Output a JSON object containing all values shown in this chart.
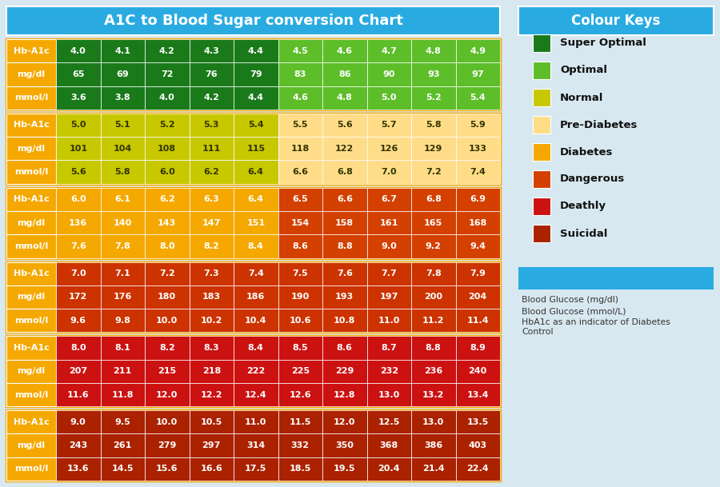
{
  "title": "A1C to Blood Sugar conversion Chart",
  "title_bg": "#29ABE2",
  "colour_keys_title": "Colour Keys",
  "colour_keys_title_bg": "#29ABE2",
  "legend_items": [
    {
      "label": "Super Optimal",
      "color": "#1A7A1A"
    },
    {
      "label": "Optimal",
      "color": "#5DBE2A"
    },
    {
      "label": "Normal",
      "color": "#C8C800"
    },
    {
      "label": "Pre-Diabetes",
      "color": "#FFDD88"
    },
    {
      "label": "Diabetes",
      "color": "#F5A800"
    },
    {
      "label": "Dangerous",
      "color": "#D44000"
    },
    {
      "label": "Deathly",
      "color": "#CC1111"
    },
    {
      "label": "Suicidal",
      "color": "#AA2200"
    }
  ],
  "note_box_color": "#29ABE2",
  "note_lines": [
    "Blood Glucose (mg/dl)",
    "Blood Glucose (mmol/L)",
    "HbA1c as an indicator of Diabetes\nControl"
  ],
  "groups": [
    {
      "rows": [
        {
          "label": "Hb-A1c",
          "values": [
            "4.0",
            "4.1",
            "4.2",
            "4.3",
            "4.4",
            "4.5",
            "4.6",
            "4.7",
            "4.8",
            "4.9"
          ]
        },
        {
          "label": "mg/dl",
          "values": [
            "65",
            "69",
            "72",
            "76",
            "79",
            "83",
            "86",
            "90",
            "93",
            "97"
          ]
        },
        {
          "label": "mmol/l",
          "values": [
            "3.6",
            "3.8",
            "4.0",
            "4.2",
            "4.4",
            "4.6",
            "4.8",
            "5.0",
            "5.2",
            "5.4"
          ]
        }
      ],
      "label_bg": "#F5A800",
      "label_text": "white",
      "cell_colors": [
        [
          "#1A7A1A",
          "#1A7A1A",
          "#1A7A1A",
          "#1A7A1A",
          "#1A7A1A",
          "#5DBE2A",
          "#5DBE2A",
          "#5DBE2A",
          "#5DBE2A",
          "#5DBE2A"
        ],
        [
          "#1A7A1A",
          "#1A7A1A",
          "#1A7A1A",
          "#1A7A1A",
          "#1A7A1A",
          "#5DBE2A",
          "#5DBE2A",
          "#5DBE2A",
          "#5DBE2A",
          "#5DBE2A"
        ],
        [
          "#1A7A1A",
          "#1A7A1A",
          "#1A7A1A",
          "#1A7A1A",
          "#1A7A1A",
          "#5DBE2A",
          "#5DBE2A",
          "#5DBE2A",
          "#5DBE2A",
          "#5DBE2A"
        ]
      ],
      "cell_text": "white",
      "border_color": "#F5A800"
    },
    {
      "rows": [
        {
          "label": "Hb-A1c",
          "values": [
            "5.0",
            "5.1",
            "5.2",
            "5.3",
            "5.4",
            "5.5",
            "5.6",
            "5.7",
            "5.8",
            "5.9"
          ]
        },
        {
          "label": "mg/dl",
          "values": [
            "101",
            "104",
            "108",
            "111",
            "115",
            "118",
            "122",
            "126",
            "129",
            "133"
          ]
        },
        {
          "label": "mmol/l",
          "values": [
            "5.6",
            "5.8",
            "6.0",
            "6.2",
            "6.4",
            "6.6",
            "6.8",
            "7.0",
            "7.2",
            "7.4"
          ]
        }
      ],
      "label_bg": "#F5A800",
      "label_text": "white",
      "cell_colors": [
        [
          "#C8C800",
          "#C8C800",
          "#C8C800",
          "#C8C800",
          "#C8C800",
          "#FFDD88",
          "#FFDD88",
          "#FFDD88",
          "#FFDD88",
          "#FFDD88"
        ],
        [
          "#C8C800",
          "#C8C800",
          "#C8C800",
          "#C8C800",
          "#C8C800",
          "#FFDD88",
          "#FFDD88",
          "#FFDD88",
          "#FFDD88",
          "#FFDD88"
        ],
        [
          "#C8C800",
          "#C8C800",
          "#C8C800",
          "#C8C800",
          "#C8C800",
          "#FFDD88",
          "#FFDD88",
          "#FFDD88",
          "#FFDD88",
          "#FFDD88"
        ]
      ],
      "cell_text": "#333300",
      "border_color": "#F5A800"
    },
    {
      "rows": [
        {
          "label": "Hb-A1c",
          "values": [
            "6.0",
            "6.1",
            "6.2",
            "6.3",
            "6.4",
            "6.5",
            "6.6",
            "6.7",
            "6.8",
            "6.9"
          ]
        },
        {
          "label": "mg/dl",
          "values": [
            "136",
            "140",
            "143",
            "147",
            "151",
            "154",
            "158",
            "161",
            "165",
            "168"
          ]
        },
        {
          "label": "mmol/l",
          "values": [
            "7.6",
            "7.8",
            "8.0",
            "8.2",
            "8.4",
            "8.6",
            "8.8",
            "9.0",
            "9.2",
            "9.4"
          ]
        }
      ],
      "label_bg": "#F5A800",
      "label_text": "white",
      "cell_colors": [
        [
          "#F5A800",
          "#F5A800",
          "#F5A800",
          "#F5A800",
          "#F5A800",
          "#D44000",
          "#D44000",
          "#D44000",
          "#D44000",
          "#D44000"
        ],
        [
          "#F5A800",
          "#F5A800",
          "#F5A800",
          "#F5A800",
          "#F5A800",
          "#D44000",
          "#D44000",
          "#D44000",
          "#D44000",
          "#D44000"
        ],
        [
          "#F5A800",
          "#F5A800",
          "#F5A800",
          "#F5A800",
          "#F5A800",
          "#D44000",
          "#D44000",
          "#D44000",
          "#D44000",
          "#D44000"
        ]
      ],
      "cell_text": "white",
      "border_color": "#F5A800"
    },
    {
      "rows": [
        {
          "label": "Hb-A1c",
          "values": [
            "7.0",
            "7.1",
            "7.2",
            "7.3",
            "7.4",
            "7.5",
            "7.6",
            "7.7",
            "7.8",
            "7.9"
          ]
        },
        {
          "label": "mg/dl",
          "values": [
            "172",
            "176",
            "180",
            "183",
            "186",
            "190",
            "193",
            "197",
            "200",
            "204"
          ]
        },
        {
          "label": "mmol/l",
          "values": [
            "9.6",
            "9.8",
            "10.0",
            "10.2",
            "10.4",
            "10.6",
            "10.8",
            "11.0",
            "11.2",
            "11.4"
          ]
        }
      ],
      "label_bg": "#F5A800",
      "label_text": "white",
      "cell_colors": [
        [
          "#CC3300",
          "#CC3300",
          "#CC3300",
          "#CC3300",
          "#CC3300",
          "#CC3300",
          "#CC3300",
          "#CC3300",
          "#CC3300",
          "#CC3300"
        ],
        [
          "#CC3300",
          "#CC3300",
          "#CC3300",
          "#CC3300",
          "#CC3300",
          "#CC3300",
          "#CC3300",
          "#CC3300",
          "#CC3300",
          "#CC3300"
        ],
        [
          "#CC3300",
          "#CC3300",
          "#CC3300",
          "#CC3300",
          "#CC3300",
          "#CC3300",
          "#CC3300",
          "#CC3300",
          "#CC3300",
          "#CC3300"
        ]
      ],
      "cell_text": "white",
      "border_color": "#F5A800"
    },
    {
      "rows": [
        {
          "label": "Hb-A1c",
          "values": [
            "8.0",
            "8.1",
            "8.2",
            "8.3",
            "8.4",
            "8.5",
            "8.6",
            "8.7",
            "8.8",
            "8.9"
          ]
        },
        {
          "label": "mg/dl",
          "values": [
            "207",
            "211",
            "215",
            "218",
            "222",
            "225",
            "229",
            "232",
            "236",
            "240"
          ]
        },
        {
          "label": "mmol/l",
          "values": [
            "11.6",
            "11.8",
            "12.0",
            "12.2",
            "12.4",
            "12.6",
            "12.8",
            "13.0",
            "13.2",
            "13.4"
          ]
        }
      ],
      "label_bg": "#F5A800",
      "label_text": "white",
      "cell_colors": [
        [
          "#CC1111",
          "#CC1111",
          "#CC1111",
          "#CC1111",
          "#CC1111",
          "#CC1111",
          "#CC1111",
          "#CC1111",
          "#CC1111",
          "#CC1111"
        ],
        [
          "#CC1111",
          "#CC1111",
          "#CC1111",
          "#CC1111",
          "#CC1111",
          "#CC1111",
          "#CC1111",
          "#CC1111",
          "#CC1111",
          "#CC1111"
        ],
        [
          "#CC1111",
          "#CC1111",
          "#CC1111",
          "#CC1111",
          "#CC1111",
          "#CC1111",
          "#CC1111",
          "#CC1111",
          "#CC1111",
          "#CC1111"
        ]
      ],
      "cell_text": "white",
      "border_color": "#F5A800"
    },
    {
      "rows": [
        {
          "label": "Hb-A1c",
          "values": [
            "9.0",
            "9.5",
            "10.0",
            "10.5",
            "11.0",
            "11.5",
            "12.0",
            "12.5",
            "13.0",
            "13.5"
          ]
        },
        {
          "label": "mg/dl",
          "values": [
            "243",
            "261",
            "279",
            "297",
            "314",
            "332",
            "350",
            "368",
            "386",
            "403"
          ]
        },
        {
          "label": "mmol/l",
          "values": [
            "13.6",
            "14.5",
            "15.6",
            "16.6",
            "17.5",
            "18.5",
            "19.5",
            "20.4",
            "21.4",
            "22.4"
          ]
        }
      ],
      "label_bg": "#F5A800",
      "label_text": "white",
      "cell_colors": [
        [
          "#AA2200",
          "#AA2200",
          "#AA2200",
          "#AA2200",
          "#AA2200",
          "#AA2200",
          "#AA2200",
          "#AA2200",
          "#AA2200",
          "#AA2200"
        ],
        [
          "#AA2200",
          "#AA2200",
          "#AA2200",
          "#AA2200",
          "#AA2200",
          "#AA2200",
          "#AA2200",
          "#AA2200",
          "#AA2200",
          "#AA2200"
        ],
        [
          "#AA2200",
          "#AA2200",
          "#AA2200",
          "#AA2200",
          "#AA2200",
          "#AA2200",
          "#AA2200",
          "#AA2200",
          "#AA2200",
          "#AA2200"
        ]
      ],
      "cell_text": "white",
      "border_color": "#F5A800"
    }
  ],
  "bg_color": "#D8E8F0"
}
